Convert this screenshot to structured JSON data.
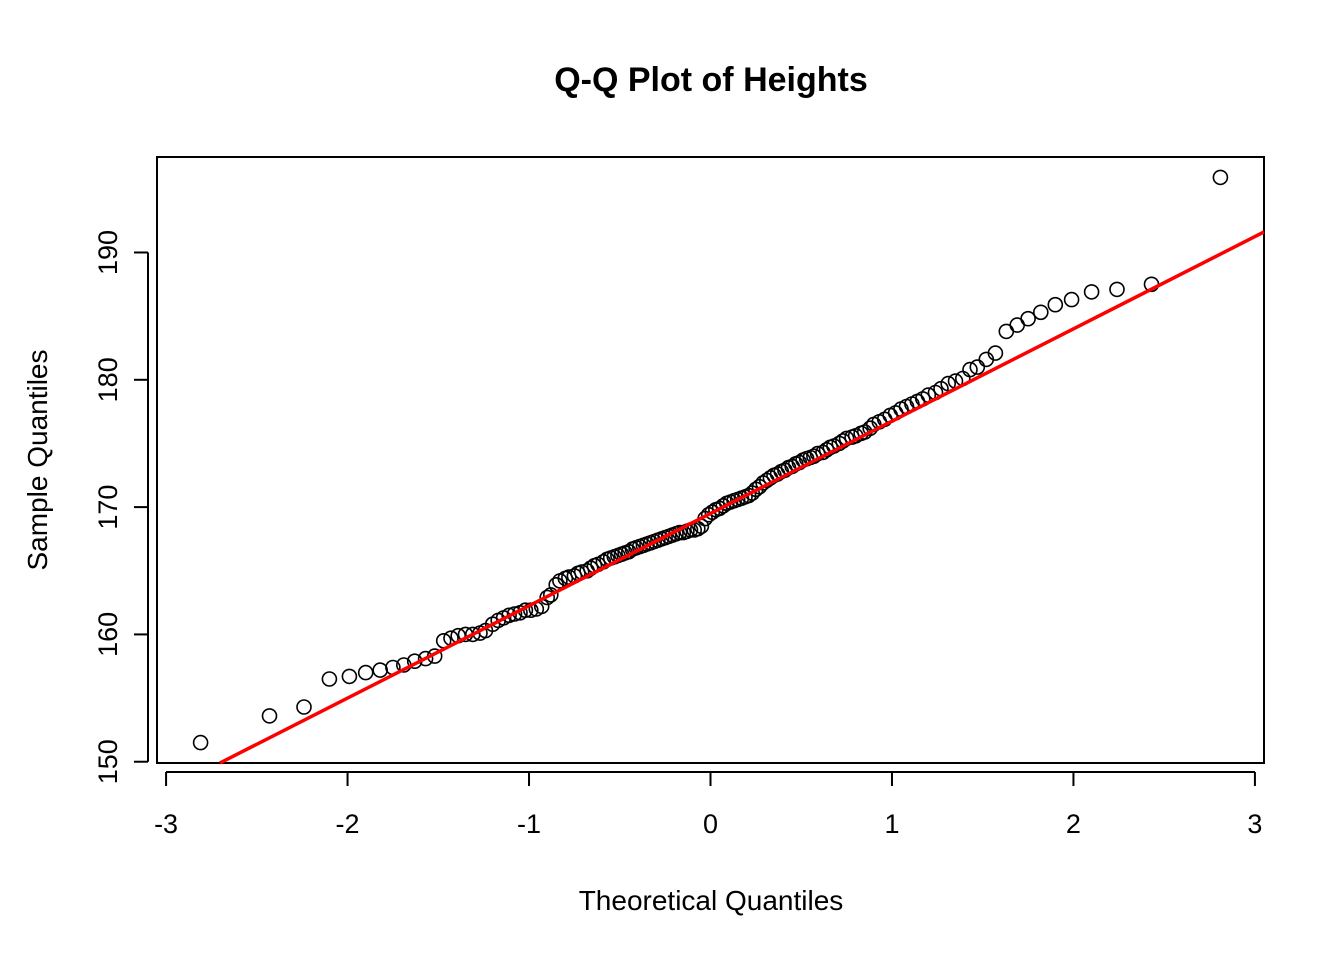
{
  "chart_data": {
    "type": "scatter",
    "title": "Q-Q Plot of Heights",
    "xlabel": "Theoretical Quantiles",
    "ylabel": "Sample Quantiles",
    "xlim": [
      -3.05,
      3.05
    ],
    "ylim": [
      149.9,
      197.5
    ],
    "x_ticks": [
      -3,
      -2,
      -1,
      0,
      1,
      2,
      3
    ],
    "x_tick_labels": [
      "-3",
      "-2",
      "-1",
      "0",
      "1",
      "2",
      "3"
    ],
    "y_ticks": [
      150,
      160,
      170,
      180,
      190
    ],
    "y_tick_labels": [
      "150",
      "160",
      "170",
      "180",
      "190"
    ],
    "grid": false,
    "legend": "none",
    "colors": {
      "points": "#000000",
      "reference_line": "#ff0000"
    },
    "reference_line": {
      "intercept": 169.5,
      "slope": 7.25
    },
    "series": [
      {
        "marker": "open-circle",
        "points": [
          [
            -2.81,
            151.5
          ],
          [
            -2.43,
            153.6
          ],
          [
            -2.24,
            154.3
          ],
          [
            -2.1,
            156.5
          ],
          [
            -1.99,
            156.7
          ],
          [
            -1.9,
            157.0
          ],
          [
            -1.82,
            157.2
          ],
          [
            -1.75,
            157.4
          ],
          [
            -1.69,
            157.6
          ],
          [
            -1.63,
            157.9
          ],
          [
            -1.57,
            158.1
          ],
          [
            -1.52,
            158.3
          ],
          [
            -1.47,
            159.5
          ],
          [
            -1.43,
            159.7
          ],
          [
            -1.39,
            159.9
          ],
          [
            -1.35,
            160.0
          ],
          [
            -1.31,
            160.0
          ],
          [
            -1.27,
            160.1
          ],
          [
            -1.24,
            160.3
          ],
          [
            -1.2,
            160.8
          ],
          [
            -1.17,
            161.1
          ],
          [
            -1.14,
            161.3
          ],
          [
            -1.11,
            161.5
          ],
          [
            -1.08,
            161.6
          ],
          [
            -1.05,
            161.7
          ],
          [
            -1.02,
            161.9
          ],
          [
            -0.99,
            161.9
          ],
          [
            -0.96,
            162.0
          ],
          [
            -0.93,
            162.2
          ],
          [
            -0.9,
            162.9
          ],
          [
            -0.88,
            163.1
          ],
          [
            -0.85,
            163.9
          ],
          [
            -0.83,
            164.2
          ],
          [
            -0.8,
            164.4
          ],
          [
            -0.78,
            164.5
          ],
          [
            -0.75,
            164.6
          ],
          [
            -0.73,
            164.8
          ],
          [
            -0.71,
            164.9
          ],
          [
            -0.68,
            165.0
          ],
          [
            -0.66,
            165.2
          ],
          [
            -0.64,
            165.4
          ],
          [
            -0.62,
            165.5
          ],
          [
            -0.59,
            165.7
          ],
          [
            -0.57,
            165.9
          ],
          [
            -0.55,
            166.0
          ],
          [
            -0.53,
            166.1
          ],
          [
            -0.51,
            166.2
          ],
          [
            -0.49,
            166.3
          ],
          [
            -0.47,
            166.4
          ],
          [
            -0.45,
            166.5
          ],
          [
            -0.43,
            166.7
          ],
          [
            -0.41,
            166.8
          ],
          [
            -0.39,
            166.9
          ],
          [
            -0.37,
            167.0
          ],
          [
            -0.35,
            167.1
          ],
          [
            -0.33,
            167.2
          ],
          [
            -0.31,
            167.3
          ],
          [
            -0.29,
            167.4
          ],
          [
            -0.27,
            167.5
          ],
          [
            -0.25,
            167.6
          ],
          [
            -0.23,
            167.7
          ],
          [
            -0.21,
            167.8
          ],
          [
            -0.19,
            167.9
          ],
          [
            -0.17,
            168.0
          ],
          [
            -0.15,
            168.0
          ],
          [
            -0.13,
            168.1
          ],
          [
            -0.11,
            168.2
          ],
          [
            -0.09,
            168.2
          ],
          [
            -0.07,
            168.3
          ],
          [
            -0.05,
            168.5
          ],
          [
            -0.03,
            169.1
          ],
          [
            -0.01,
            169.4
          ],
          [
            0.01,
            169.6
          ],
          [
            0.03,
            169.8
          ],
          [
            0.05,
            169.9
          ],
          [
            0.07,
            170.1
          ],
          [
            0.09,
            170.3
          ],
          [
            0.11,
            170.4
          ],
          [
            0.13,
            170.5
          ],
          [
            0.15,
            170.6
          ],
          [
            0.17,
            170.7
          ],
          [
            0.19,
            170.8
          ],
          [
            0.21,
            170.9
          ],
          [
            0.23,
            171.1
          ],
          [
            0.25,
            171.4
          ],
          [
            0.27,
            171.6
          ],
          [
            0.29,
            171.9
          ],
          [
            0.31,
            172.1
          ],
          [
            0.33,
            172.3
          ],
          [
            0.35,
            172.5
          ],
          [
            0.37,
            172.6
          ],
          [
            0.39,
            172.8
          ],
          [
            0.41,
            172.9
          ],
          [
            0.43,
            173.1
          ],
          [
            0.45,
            173.2
          ],
          [
            0.47,
            173.4
          ],
          [
            0.49,
            173.5
          ],
          [
            0.51,
            173.7
          ],
          [
            0.53,
            173.8
          ],
          [
            0.55,
            173.9
          ],
          [
            0.57,
            174.0
          ],
          [
            0.59,
            174.2
          ],
          [
            0.62,
            174.3
          ],
          [
            0.64,
            174.5
          ],
          [
            0.66,
            174.7
          ],
          [
            0.68,
            174.8
          ],
          [
            0.71,
            175.0
          ],
          [
            0.73,
            175.2
          ],
          [
            0.75,
            175.4
          ],
          [
            0.78,
            175.5
          ],
          [
            0.8,
            175.6
          ],
          [
            0.83,
            175.8
          ],
          [
            0.85,
            175.9
          ],
          [
            0.88,
            176.2
          ],
          [
            0.9,
            176.5
          ],
          [
            0.93,
            176.7
          ],
          [
            0.96,
            176.9
          ],
          [
            0.99,
            177.2
          ],
          [
            1.02,
            177.4
          ],
          [
            1.05,
            177.7
          ],
          [
            1.08,
            177.9
          ],
          [
            1.11,
            178.1
          ],
          [
            1.14,
            178.3
          ],
          [
            1.17,
            178.5
          ],
          [
            1.2,
            178.8
          ],
          [
            1.24,
            179.0
          ],
          [
            1.27,
            179.3
          ],
          [
            1.31,
            179.7
          ],
          [
            1.35,
            179.9
          ],
          [
            1.39,
            180.1
          ],
          [
            1.43,
            180.8
          ],
          [
            1.47,
            181.0
          ],
          [
            1.52,
            181.6
          ],
          [
            1.57,
            182.1
          ],
          [
            1.63,
            183.8
          ],
          [
            1.69,
            184.3
          ],
          [
            1.75,
            184.8
          ],
          [
            1.82,
            185.3
          ],
          [
            1.9,
            185.9
          ],
          [
            1.99,
            186.3
          ],
          [
            2.1,
            186.9
          ],
          [
            2.24,
            187.1
          ],
          [
            2.43,
            187.5
          ],
          [
            2.81,
            195.9
          ]
        ]
      }
    ]
  }
}
